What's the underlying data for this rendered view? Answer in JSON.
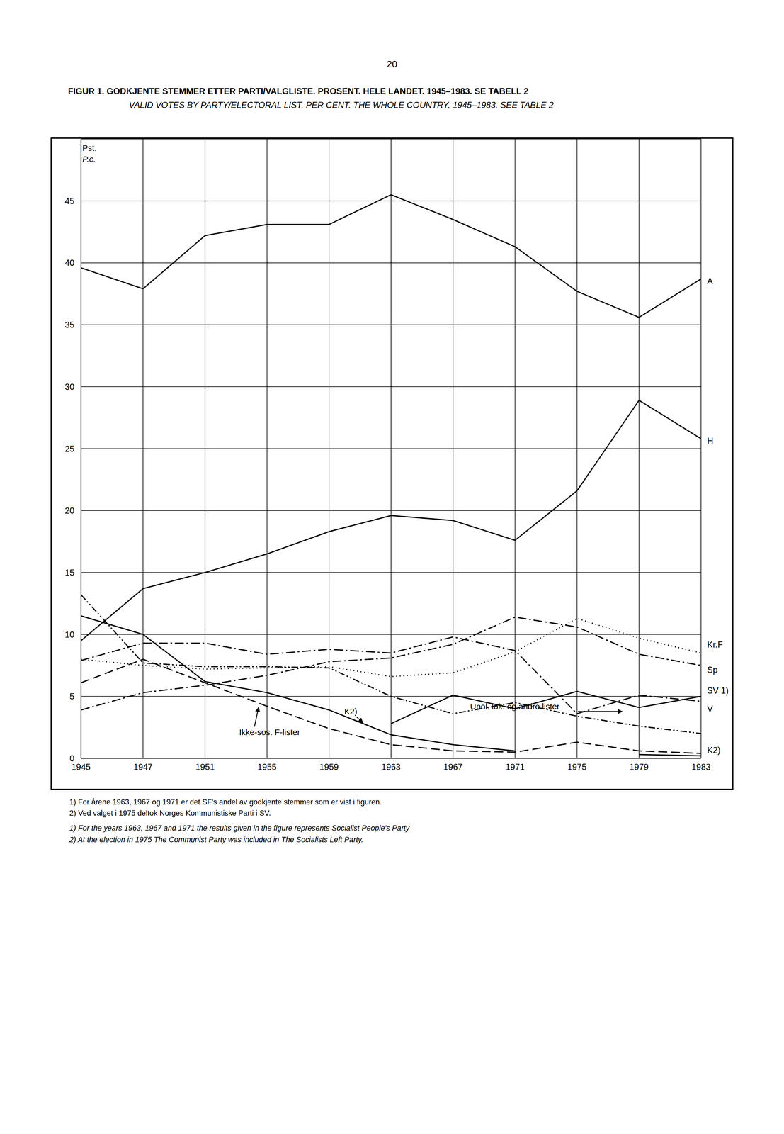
{
  "chart_data": {
    "type": "line",
    "page_number": "20",
    "title": "FIGUR 1. GODKJENTE STEMMER ETTER PARTI/VALGLISTE. PROSENT. HELE LANDET. 1945–1983. SE TABELL 2",
    "subtitle": "VALID VOTES BY PARTY/ELECTORAL LIST. PER CENT. THE WHOLE COUNTRY. 1945–1983. SEE TABLE 2",
    "y_label": "Pst.",
    "y_label_en": "P.c.",
    "categories": [
      "1945",
      "1947",
      "1951",
      "1955",
      "1959",
      "1963",
      "1967",
      "1971",
      "1975",
      "1979",
      "1983"
    ],
    "ylim": [
      0,
      50
    ],
    "yticks": [
      0,
      5,
      10,
      15,
      20,
      25,
      30,
      35,
      40,
      45
    ],
    "grid": true,
    "series": [
      {
        "name": "A",
        "color": "#000000",
        "line_style": "solid",
        "values": [
          39.6,
          37.9,
          42.2,
          43.1,
          43.1,
          45.5,
          43.5,
          41.3,
          37.7,
          35.6,
          38.7
        ]
      },
      {
        "name": "H",
        "color": "#000000",
        "line_style": "solid",
        "values": [
          9.5,
          13.7,
          15.0,
          16.5,
          18.3,
          19.6,
          19.2,
          17.6,
          21.6,
          28.9,
          25.8
        ]
      },
      {
        "name": "Kr.F",
        "color": "#000000",
        "line_style": "dotted",
        "values": [
          8.0,
          7.5,
          7.2,
          7.3,
          7.4,
          6.6,
          6.9,
          8.6,
          11.3,
          9.7,
          8.5
        ]
      },
      {
        "name": "Sp",
        "color": "#000000",
        "line_style": "dashdot",
        "values": [
          3.9,
          5.3,
          5.9,
          6.7,
          7.8,
          8.1,
          9.2,
          11.4,
          10.6,
          8.4,
          7.5
        ]
      },
      {
        "name": "SV 1)",
        "color": "#000000",
        "line_style": "solid",
        "values": [
          null,
          null,
          null,
          null,
          null,
          2.8,
          5.1,
          4.0,
          5.4,
          4.1,
          5.0
        ]
      },
      {
        "name": "V",
        "color": "#000000",
        "line_style": "dashdot",
        "values": [
          7.9,
          9.3,
          9.3,
          8.4,
          8.8,
          8.5,
          9.8,
          8.7,
          3.6,
          5.1,
          4.6
        ]
      },
      {
        "name": "Upol. lok. og andre lister",
        "color": "#000000",
        "line_style": "dashdotdot",
        "values": [
          13.2,
          7.7,
          7.4,
          7.4,
          7.3,
          5.0,
          3.6,
          4.5,
          3.4,
          2.6,
          2.0
        ]
      },
      {
        "name": "Ikke-sos. F-lister",
        "color": "#000000",
        "line_style": "dashed",
        "values": [
          6.1,
          8.0,
          6.1,
          4.2,
          2.4,
          1.1,
          0.6,
          0.5,
          1.3,
          0.6,
          0.4
        ]
      },
      {
        "name": "K2)",
        "color": "#000000",
        "line_style": "solid",
        "values": [
          11.5,
          10.0,
          6.2,
          5.3,
          3.9,
          1.9,
          1.1,
          0.6,
          null,
          0.3,
          0.2
        ]
      }
    ],
    "annotations": [
      "K2)"
    ],
    "notes": [
      "1) For årene 1963, 1967 og 1971 er det SF's andel av godkjente stemmer som er vist i figuren.",
      "2) Ved valget i 1975 deltok Norges Kommunistiske Parti i SV.",
      "1) For the years 1963, 1967 and 1971 the results given in the figure represents Socialist People's Party",
      "2) At the election in 1975 The Communist Party was included in The Socialists Left Party."
    ]
  }
}
